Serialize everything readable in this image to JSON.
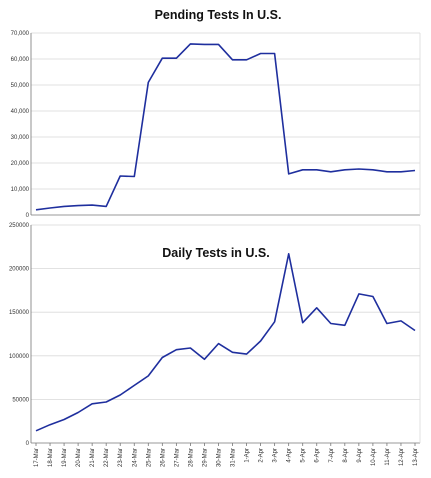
{
  "chart_data": [
    {
      "type": "line",
      "title": "Pending Tests In U.S.",
      "xlabel": "",
      "ylabel": "",
      "ylim": [
        0,
        70000
      ],
      "yticks": [
        0,
        10000,
        20000,
        30000,
        40000,
        50000,
        60000,
        70000
      ],
      "ytick_labels": [
        "0",
        "10,000",
        "20,000",
        "30,000",
        "40,000",
        "50,000",
        "60,000",
        "70,000"
      ],
      "grid": true,
      "color": "#1f2f9e",
      "x": [
        "17-Mar",
        "18-Mar",
        "19-Mar",
        "20-Mar",
        "21-Mar",
        "22-Mar",
        "23-Mar",
        "24-Mar",
        "25-Mar",
        "26-Mar",
        "27-Mar",
        "28-Mar",
        "29-Mar",
        "30-Mar",
        "31-Mar",
        "1-Apr",
        "2-Apr",
        "3-Apr",
        "4-Apr",
        "5-Apr",
        "6-Apr",
        "7-Apr",
        "8-Apr",
        "9-Apr",
        "10-Apr",
        "11-Apr",
        "12-Apr",
        "13-Apr"
      ],
      "values": [
        2000,
        2700,
        3300,
        3600,
        3800,
        3300,
        15000,
        14800,
        51000,
        60300,
        60300,
        65800,
        65600,
        65600,
        59700,
        59700,
        62100,
        62100,
        15800,
        17400,
        17400,
        16600,
        17400,
        17700,
        17400,
        16600,
        16600,
        17100
      ]
    },
    {
      "type": "line",
      "title": "Daily Tests in U.S.",
      "xlabel": "",
      "ylabel": "",
      "ylim": [
        0,
        250000
      ],
      "yticks": [
        0,
        50000,
        100000,
        150000,
        200000,
        250000
      ],
      "ytick_labels": [
        "0",
        "50000",
        "100000",
        "150000",
        "200000",
        "250000"
      ],
      "grid": true,
      "color": "#1f2f9e",
      "x": [
        "17-Mar",
        "18-Mar",
        "19-Mar",
        "20-Mar",
        "21-Mar",
        "22-Mar",
        "23-Mar",
        "24-Mar",
        "25-Mar",
        "26-Mar",
        "27-Mar",
        "28-Mar",
        "29-Mar",
        "30-Mar",
        "31-Mar",
        "1-Apr",
        "2-Apr",
        "3-Apr",
        "4-Apr",
        "5-Apr",
        "6-Apr",
        "7-Apr",
        "8-Apr",
        "9-Apr",
        "10-Apr",
        "11-Apr",
        "12-Apr",
        "13-Apr"
      ],
      "x_tick_labels": [
        "17-Mar",
        "18-Mar",
        "19-Mar",
        "20-Mar",
        "21-Mar",
        "22-Mar",
        "23-Mar",
        "24-Mar",
        "25-Mar",
        "26-Mar",
        "27-Mar",
        "28-Mar",
        "29-Mar",
        "30-Mar",
        "31-Mar",
        "1-Apr",
        "2-Apr",
        "3-Apr",
        "4-Apr",
        "5-Apr",
        "6-Apr",
        "7-Apr",
        "8-Apr",
        "9-Apr",
        "10-Apr",
        "11-Apr",
        "12-Apr",
        "13-Apr"
      ],
      "values": [
        14000,
        21000,
        27000,
        35000,
        45000,
        47000,
        55000,
        66000,
        77000,
        98000,
        107000,
        109000,
        96000,
        114000,
        104000,
        102000,
        117000,
        139000,
        217000,
        138000,
        155000,
        137000,
        135000,
        171000,
        168000,
        137000,
        140000,
        129000
      ]
    }
  ]
}
